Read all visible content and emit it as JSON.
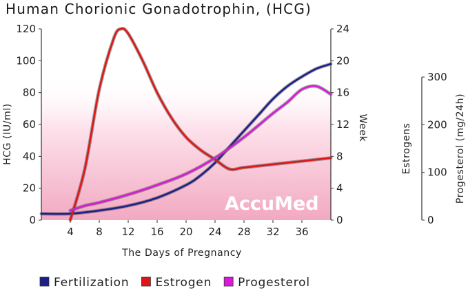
{
  "chart_data": {
    "type": "line",
    "title": "Human Chorionic Gonadotrophin, (HCG)",
    "xlabel": "The Days of Pregnancy",
    "x_ticks": [
      4,
      8,
      12,
      16,
      20,
      24,
      28,
      32,
      36
    ],
    "xlim": [
      0,
      40
    ],
    "y_axes": [
      {
        "label": "HCG (IU/ml)",
        "ticks": [
          0,
          20,
          40,
          60,
          80,
          100,
          120
        ],
        "range": [
          0,
          120
        ]
      },
      {
        "label": "Week",
        "ticks": [
          0,
          4,
          8,
          12,
          16,
          20,
          24
        ],
        "range": [
          0,
          24
        ]
      },
      {
        "label": "Estrogens",
        "ticks": [
          0,
          100,
          200,
          300
        ],
        "range": [
          0,
          300
        ]
      },
      {
        "label": "Progesterol (mg/24h)",
        "ticks": [],
        "range": [
          0,
          300
        ]
      }
    ],
    "series": [
      {
        "name": "Fertilization",
        "color": "#1c1e8a",
        "axis": "HCG (IU/ml)",
        "x": [
          0,
          4,
          8,
          12,
          16,
          20,
          22,
          24,
          26,
          28,
          30,
          32,
          34,
          36,
          38,
          40
        ],
        "y": [
          4,
          4,
          6,
          9,
          14,
          22,
          28,
          36,
          46,
          56,
          66,
          76,
          84,
          90,
          95,
          98
        ]
      },
      {
        "name": "Estrogen",
        "color": "#e01616",
        "axis": "HCG (IU/ml)",
        "x": [
          4,
          6,
          8,
          10,
          11,
          12,
          14,
          16,
          18,
          20,
          22,
          24,
          26,
          28,
          32,
          36,
          40
        ],
        "y": [
          0,
          32,
          82,
          114,
          120,
          117,
          100,
          80,
          64,
          52,
          44,
          38,
          32,
          33,
          35,
          37,
          39
        ]
      },
      {
        "name": "Progesterol",
        "color": "#d81bd8",
        "axis": "HCG (IU/ml)",
        "x": [
          4,
          6,
          8,
          12,
          16,
          20,
          24,
          28,
          32,
          34,
          36,
          38,
          40
        ],
        "y": [
          6,
          9,
          11,
          16,
          22,
          29,
          39,
          52,
          67,
          74,
          82,
          84,
          79
        ]
      }
    ],
    "legend": {
      "position": "bottom",
      "entries": [
        "Fertilization",
        "Estrogen",
        "Progesterol"
      ]
    },
    "background": "pink gradient fill",
    "grid": false
  },
  "watermark": "AccuMed"
}
